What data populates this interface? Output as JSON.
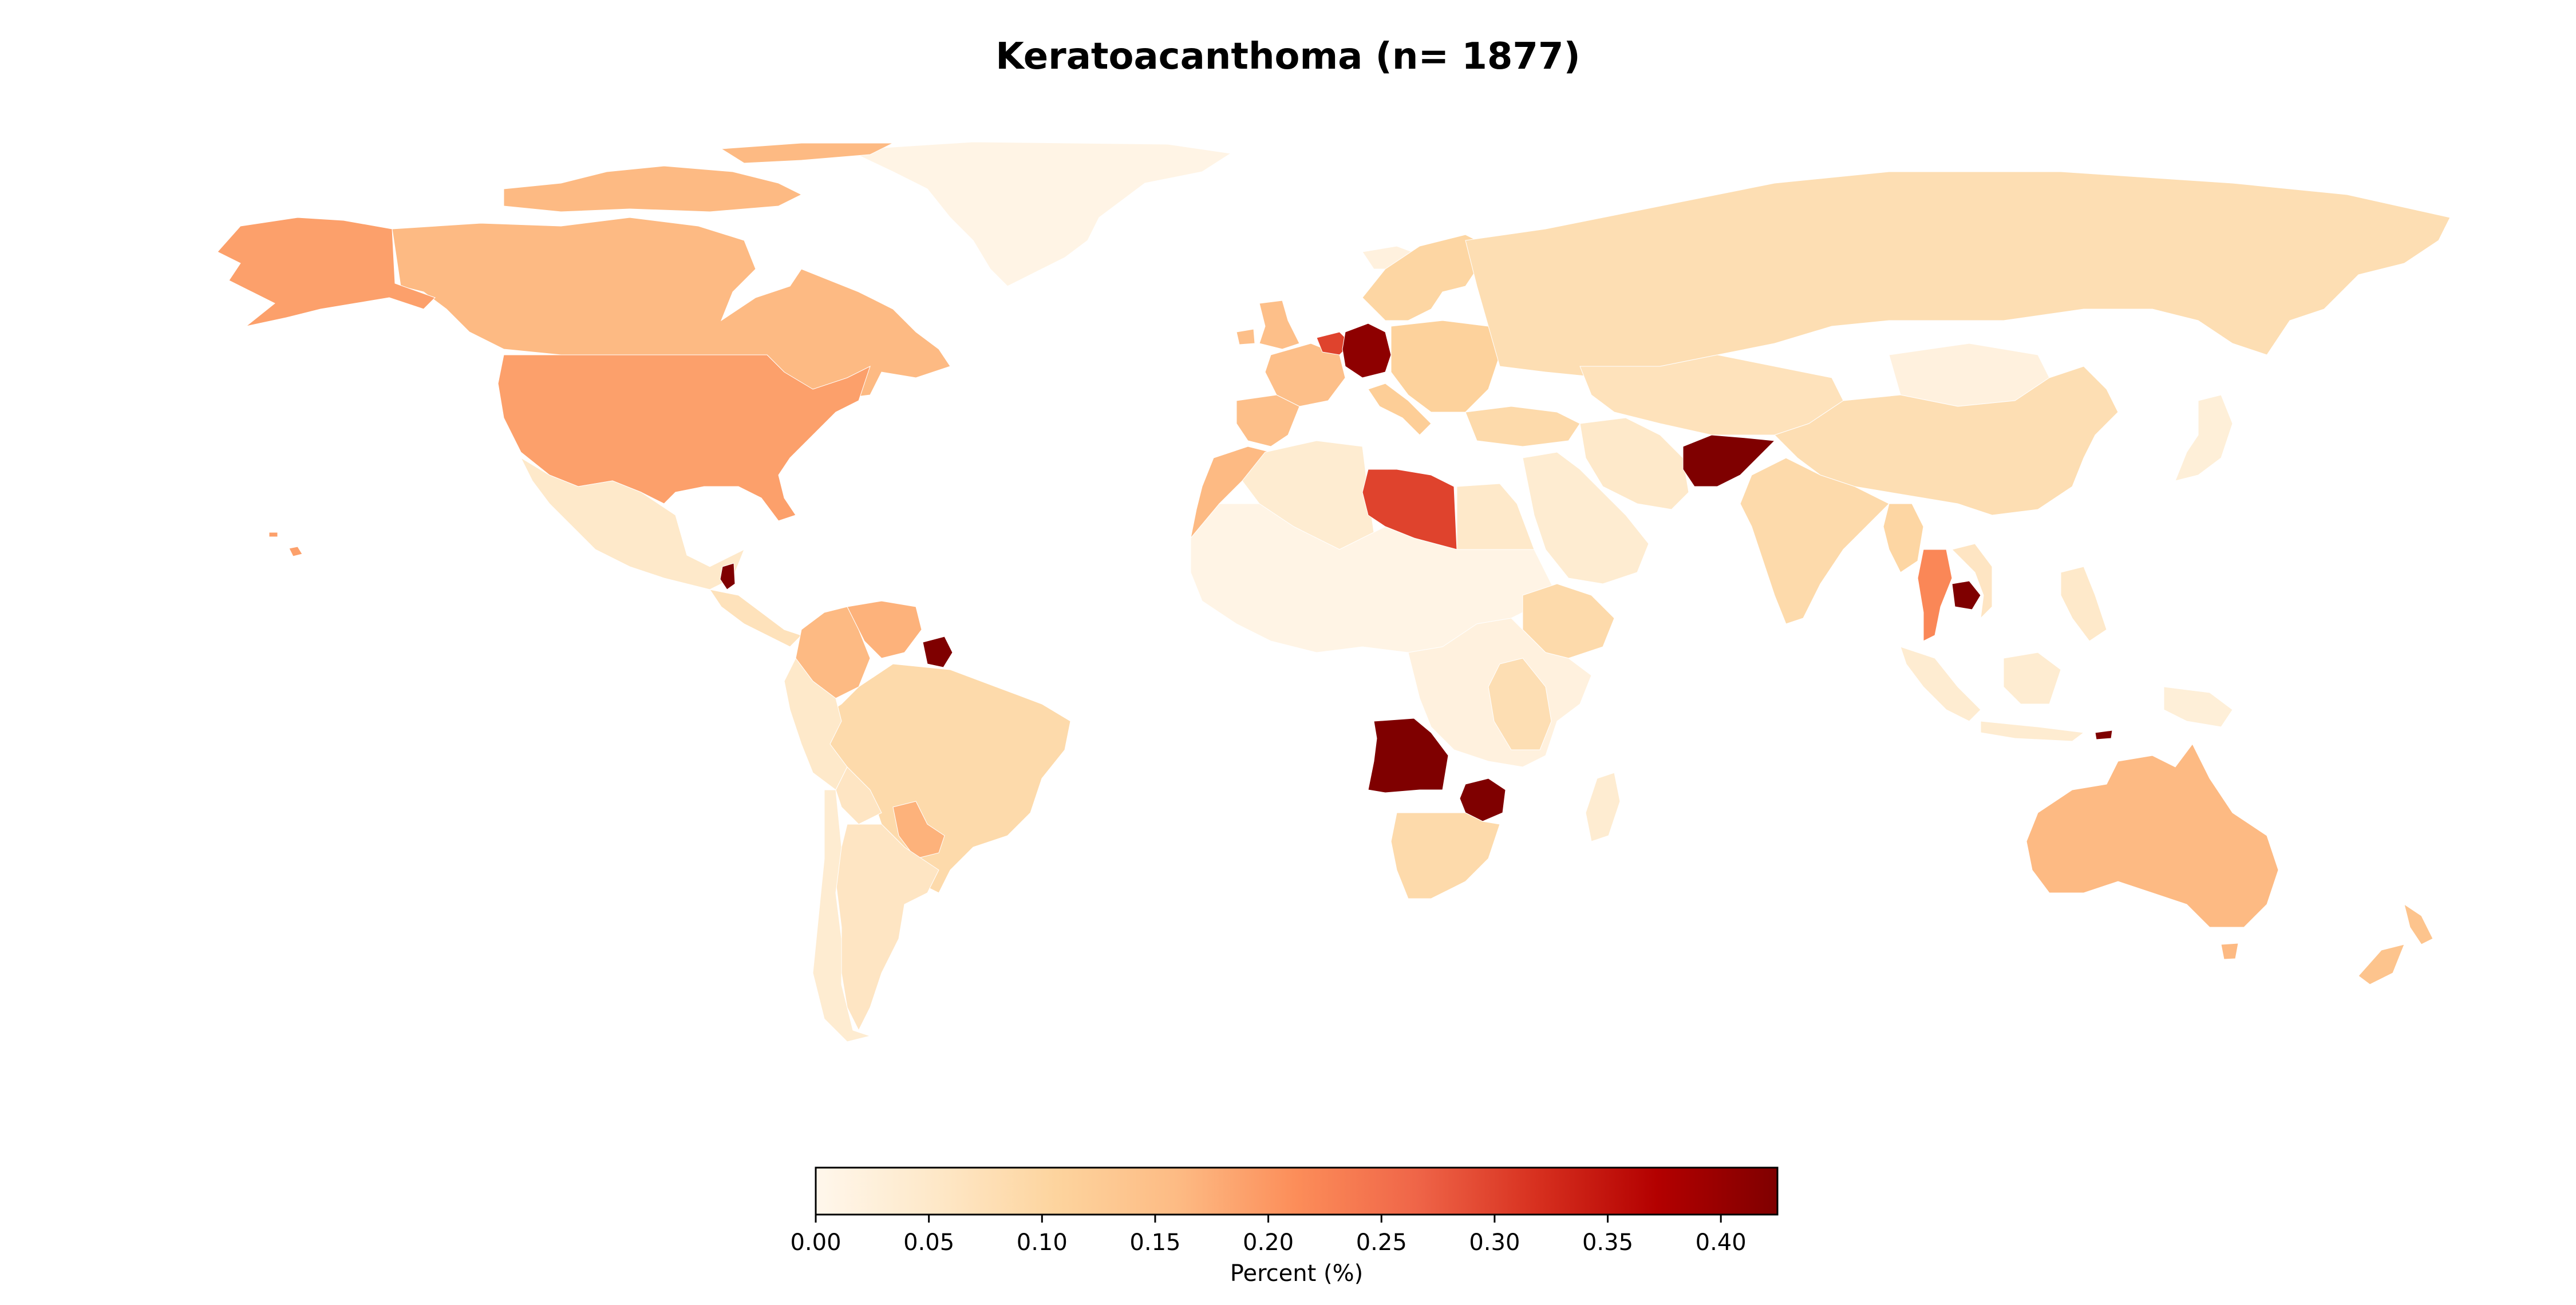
{
  "chart_data": {
    "type": "choropleth",
    "title": "Keratoacanthoma (n= 1877)",
    "colormap": "OrRd",
    "legend_placement": "bottom",
    "colorbar": {
      "label": "Percent (%)",
      "range": [
        0,
        0.425
      ],
      "ticks": [
        "0.00",
        "0.05",
        "0.10",
        "0.15",
        "0.20",
        "0.25",
        "0.30",
        "0.35",
        "0.40"
      ],
      "stops": [
        "#fff7ec",
        "#fee8c8",
        "#fdd49e",
        "#fdbb84",
        "#fc8d59",
        "#ef6548",
        "#d7301f",
        "#b30000",
        "#7f0000"
      ]
    },
    "regions": [
      {
        "id": "greenland",
        "value": 0.01
      },
      {
        "id": "canada",
        "value": 0.16
      },
      {
        "id": "alaska",
        "value": 0.19
      },
      {
        "id": "usa",
        "value": 0.19
      },
      {
        "id": "mexico",
        "value": 0.05
      },
      {
        "id": "central-america",
        "value": 0.07
      },
      {
        "id": "guatemala",
        "value": 0.43
      },
      {
        "id": "colombia",
        "value": 0.16
      },
      {
        "id": "venezuela",
        "value": 0.17
      },
      {
        "id": "suriname",
        "value": 0.43
      },
      {
        "id": "brazil",
        "value": 0.09
      },
      {
        "id": "peru",
        "value": 0.05
      },
      {
        "id": "bolivia",
        "value": 0.06
      },
      {
        "id": "paraguay",
        "value": 0.17
      },
      {
        "id": "argentina",
        "value": 0.06
      },
      {
        "id": "chile",
        "value": 0.04
      },
      {
        "id": "iceland",
        "value": 0.02
      },
      {
        "id": "uk",
        "value": 0.15
      },
      {
        "id": "scandinavia",
        "value": 0.1
      },
      {
        "id": "france",
        "value": 0.15
      },
      {
        "id": "iberia",
        "value": 0.15
      },
      {
        "id": "benelux",
        "value": 0.3
      },
      {
        "id": "germany",
        "value": 0.41
      },
      {
        "id": "italy",
        "value": 0.12
      },
      {
        "id": "eastern-europe",
        "value": 0.11
      },
      {
        "id": "russia",
        "value": 0.08
      },
      {
        "id": "turkey",
        "value": 0.09
      },
      {
        "id": "morocco",
        "value": 0.16
      },
      {
        "id": "algeria",
        "value": 0.04
      },
      {
        "id": "libya",
        "value": 0.3
      },
      {
        "id": "egypt",
        "value": 0.05
      },
      {
        "id": "sahel",
        "value": 0.01
      },
      {
        "id": "ethiopia",
        "value": 0.09
      },
      {
        "id": "central-africa",
        "value": 0.02
      },
      {
        "id": "tanzania",
        "value": 0.08
      },
      {
        "id": "angola",
        "value": 0.43
      },
      {
        "id": "zimbabwe",
        "value": 0.43
      },
      {
        "id": "south-africa",
        "value": 0.09
      },
      {
        "id": "madagascar",
        "value": 0.04
      },
      {
        "id": "middle-east",
        "value": 0.04
      },
      {
        "id": "iran",
        "value": 0.05
      },
      {
        "id": "afghanistan",
        "value": 0.43
      },
      {
        "id": "central-asia",
        "value": 0.07
      },
      {
        "id": "mongolia",
        "value": 0.02
      },
      {
        "id": "china",
        "value": 0.08
      },
      {
        "id": "india",
        "value": 0.09
      },
      {
        "id": "myanmar",
        "value": 0.1
      },
      {
        "id": "thailand",
        "value": 0.22
      },
      {
        "id": "cambodia",
        "value": 0.43
      },
      {
        "id": "vietnam",
        "value": 0.06
      },
      {
        "id": "japan",
        "value": 0.03
      },
      {
        "id": "philippines",
        "value": 0.05
      },
      {
        "id": "indonesia",
        "value": 0.04
      },
      {
        "id": "timor",
        "value": 0.43
      },
      {
        "id": "png",
        "value": 0.03
      },
      {
        "id": "australia",
        "value": 0.16
      },
      {
        "id": "new-zealand",
        "value": 0.14
      },
      {
        "id": "hawaii",
        "value": 0.19
      }
    ]
  }
}
